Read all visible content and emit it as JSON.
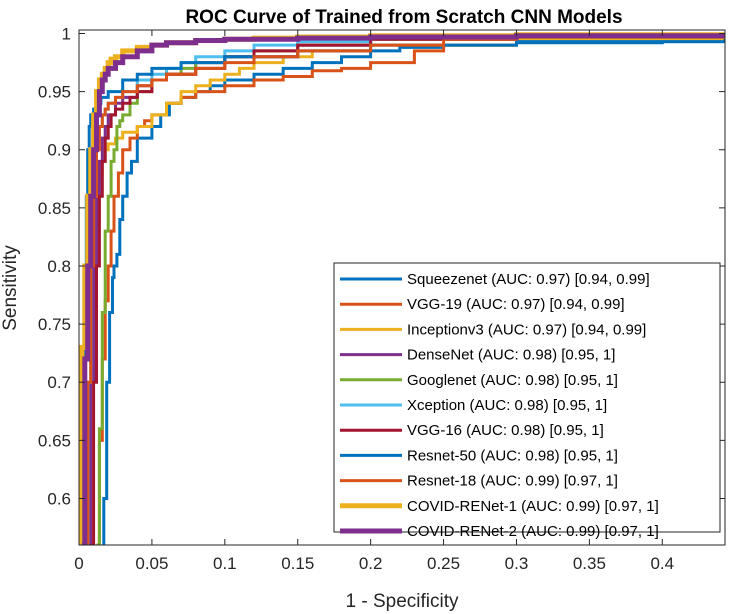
{
  "chart_data": {
    "type": "line",
    "title": "ROC Curve of Trained from Scratch CNN Models",
    "xlabel": "1 - Specificity",
    "ylabel": "Sensitivity",
    "xlim": [
      0,
      0.443
    ],
    "ylim": [
      0.56,
      1.003
    ],
    "xticks": [
      0,
      0.05,
      0.1,
      0.15,
      0.2,
      0.25,
      0.3,
      0.35,
      0.4
    ],
    "xtick_labels": [
      "0",
      "0.05",
      "0.1",
      "0.15",
      "0.2",
      "0.25",
      "0.3",
      "0.35",
      "0.4"
    ],
    "yticks": [
      0.6,
      0.65,
      0.7,
      0.75,
      0.8,
      0.85,
      0.9,
      0.95,
      1
    ],
    "ytick_labels": [
      "0.6",
      "0.65",
      "0.7",
      "0.75",
      "0.8",
      "0.85",
      "0.9",
      "0.95",
      "1"
    ],
    "grid": false,
    "legend_position": "bottom-right",
    "series": [
      {
        "name": "Squeezenet (AUC: 0.97) [0.94, 0.99]",
        "color": "#0072BD",
        "width": 3,
        "x": [
          0.016,
          0.017,
          0.019,
          0.021,
          0.023,
          0.024,
          0.026,
          0.028,
          0.03,
          0.033,
          0.036,
          0.04,
          0.045,
          0.05,
          0.056,
          0.062,
          0.07,
          0.08,
          0.09,
          0.1,
          0.12,
          0.14,
          0.16,
          0.18,
          0.2,
          0.22,
          0.25,
          0.3,
          0.4,
          0.443
        ],
        "y": [
          0.56,
          0.6,
          0.7,
          0.76,
          0.79,
          0.8,
          0.81,
          0.84,
          0.86,
          0.88,
          0.89,
          0.91,
          0.91,
          0.92,
          0.93,
          0.94,
          0.945,
          0.95,
          0.955,
          0.96,
          0.965,
          0.97,
          0.975,
          0.98,
          0.985,
          0.988,
          0.99,
          0.992,
          0.993,
          0.993
        ]
      },
      {
        "name": "VGG-19 (AUC: 0.97) [0.94, 0.99]",
        "color": "#D95319",
        "width": 3,
        "x": [
          0.012,
          0.014,
          0.016,
          0.018,
          0.02,
          0.022,
          0.024,
          0.027,
          0.03,
          0.035,
          0.04,
          0.045,
          0.05,
          0.06,
          0.07,
          0.08,
          0.1,
          0.12,
          0.14,
          0.16,
          0.18,
          0.2,
          0.23,
          0.25,
          0.3,
          0.4,
          0.443
        ],
        "y": [
          0.56,
          0.65,
          0.72,
          0.77,
          0.8,
          0.83,
          0.86,
          0.88,
          0.9,
          0.91,
          0.92,
          0.925,
          0.93,
          0.94,
          0.945,
          0.95,
          0.955,
          0.96,
          0.963,
          0.968,
          0.97,
          0.975,
          0.985,
          0.99,
          0.995,
          0.997,
          0.997
        ]
      },
      {
        "name": "Inceptionv3 (AUC: 0.97) [0.94, 0.99]",
        "color": "#EDB120",
        "width": 3,
        "x": [
          0.0,
          0.002,
          0.004,
          0.006,
          0.008,
          0.01,
          0.012,
          0.014,
          0.016,
          0.018,
          0.02,
          0.025,
          0.03,
          0.04,
          0.05,
          0.06,
          0.07,
          0.08,
          0.09,
          0.1,
          0.11,
          0.12,
          0.14,
          0.16,
          0.2,
          0.3,
          0.443
        ],
        "y": [
          0.56,
          0.7,
          0.76,
          0.8,
          0.84,
          0.86,
          0.87,
          0.88,
          0.89,
          0.9,
          0.905,
          0.91,
          0.915,
          0.92,
          0.93,
          0.94,
          0.95,
          0.955,
          0.96,
          0.965,
          0.97,
          0.975,
          0.98,
          0.985,
          0.99,
          0.995,
          0.998
        ]
      },
      {
        "name": "DenseNet (AUC: 0.98) [0.95, 1]",
        "color": "#7E2F8E",
        "width": 3,
        "x": [
          0.006,
          0.008,
          0.01,
          0.012,
          0.014,
          0.016,
          0.018,
          0.02,
          0.025,
          0.03,
          0.04,
          0.05,
          0.06,
          0.08,
          0.1,
          0.15,
          0.2,
          0.3,
          0.443
        ],
        "y": [
          0.56,
          0.7,
          0.8,
          0.86,
          0.89,
          0.91,
          0.92,
          0.93,
          0.94,
          0.945,
          0.955,
          0.96,
          0.965,
          0.975,
          0.98,
          0.99,
          0.995,
          0.997,
          0.998
        ]
      },
      {
        "name": "Googlenet (AUC: 0.98) [0.95, 1]",
        "color": "#77AC30",
        "width": 3,
        "x": [
          0.012,
          0.014,
          0.016,
          0.018,
          0.02,
          0.022,
          0.024,
          0.026,
          0.028,
          0.03,
          0.035,
          0.04,
          0.05,
          0.06,
          0.07,
          0.08,
          0.1,
          0.12,
          0.15,
          0.2,
          0.3,
          0.443
        ],
        "y": [
          0.56,
          0.66,
          0.76,
          0.83,
          0.86,
          0.89,
          0.9,
          0.92,
          0.925,
          0.93,
          0.94,
          0.95,
          0.96,
          0.965,
          0.97,
          0.975,
          0.98,
          0.985,
          0.99,
          0.995,
          0.997,
          0.998
        ]
      },
      {
        "name": "Xception (AUC: 0.98) [0.95, 1]",
        "color": "#4DBEEE",
        "width": 3,
        "x": [
          0.004,
          0.006,
          0.008,
          0.01,
          0.012,
          0.014,
          0.016,
          0.018,
          0.02,
          0.025,
          0.03,
          0.04,
          0.05,
          0.06,
          0.07,
          0.08,
          0.1,
          0.12,
          0.15,
          0.2,
          0.3,
          0.443
        ],
        "y": [
          0.56,
          0.7,
          0.8,
          0.86,
          0.9,
          0.92,
          0.93,
          0.935,
          0.94,
          0.945,
          0.95,
          0.96,
          0.965,
          0.97,
          0.975,
          0.98,
          0.985,
          0.99,
          0.993,
          0.996,
          0.997,
          0.998
        ]
      },
      {
        "name": "VGG-16 (AUC: 0.98) [0.95, 1]",
        "color": "#A2142F",
        "width": 3,
        "x": [
          0.008,
          0.01,
          0.012,
          0.014,
          0.016,
          0.018,
          0.02,
          0.022,
          0.025,
          0.03,
          0.035,
          0.04,
          0.05,
          0.06,
          0.08,
          0.1,
          0.12,
          0.15,
          0.2,
          0.3,
          0.443
        ],
        "y": [
          0.56,
          0.7,
          0.8,
          0.86,
          0.89,
          0.91,
          0.92,
          0.93,
          0.935,
          0.94,
          0.945,
          0.95,
          0.96,
          0.965,
          0.97,
          0.98,
          0.985,
          0.99,
          0.995,
          0.997,
          0.998
        ]
      },
      {
        "name": "Resnet-50 (AUC: 0.98) [0.95, 1]",
        "color": "#0072BD",
        "width": 3,
        "x": [
          0.002,
          0.003,
          0.004,
          0.005,
          0.006,
          0.007,
          0.008,
          0.01,
          0.012,
          0.015,
          0.02,
          0.03,
          0.04,
          0.05,
          0.07,
          0.1,
          0.15,
          0.2,
          0.3,
          0.443
        ],
        "y": [
          0.56,
          0.7,
          0.8,
          0.86,
          0.9,
          0.92,
          0.93,
          0.935,
          0.94,
          0.945,
          0.95,
          0.96,
          0.965,
          0.97,
          0.975,
          0.98,
          0.985,
          0.99,
          0.993,
          0.995
        ]
      },
      {
        "name": "Resnet-18 (AUC: 0.99) [0.97, 1]",
        "color": "#D95319",
        "width": 3,
        "x": [
          0.004,
          0.006,
          0.008,
          0.01,
          0.012,
          0.014,
          0.016,
          0.018,
          0.02,
          0.025,
          0.03,
          0.04,
          0.05,
          0.06,
          0.08,
          0.1,
          0.12,
          0.15,
          0.2,
          0.25,
          0.3,
          0.443
        ],
        "y": [
          0.56,
          0.7,
          0.8,
          0.86,
          0.9,
          0.92,
          0.93,
          0.935,
          0.94,
          0.945,
          0.95,
          0.955,
          0.96,
          0.965,
          0.97,
          0.975,
          0.98,
          0.985,
          0.99,
          0.995,
          0.998,
          0.998
        ]
      },
      {
        "name": "COVID-RENet-1 (AUC: 0.99) [0.97, 1]",
        "color": "#EDB120",
        "width": 5,
        "x": [
          0.0,
          0.002,
          0.004,
          0.006,
          0.008,
          0.01,
          0.012,
          0.014,
          0.016,
          0.018,
          0.02,
          0.022,
          0.025,
          0.03,
          0.04,
          0.05,
          0.06,
          0.08,
          0.1,
          0.12,
          0.15,
          0.2,
          0.3,
          0.443
        ],
        "y": [
          0.56,
          0.73,
          0.8,
          0.86,
          0.9,
          0.93,
          0.95,
          0.96,
          0.965,
          0.97,
          0.975,
          0.978,
          0.98,
          0.985,
          0.988,
          0.99,
          0.992,
          0.994,
          0.995,
          0.996,
          0.997,
          0.998,
          0.999,
          1.0
        ]
      },
      {
        "name": "COVID-RENet-2 (AUC: 0.99) [0.97, 1]",
        "color": "#7E2F8E",
        "width": 5,
        "x": [
          0.002,
          0.004,
          0.006,
          0.008,
          0.01,
          0.012,
          0.014,
          0.016,
          0.018,
          0.02,
          0.025,
          0.03,
          0.04,
          0.05,
          0.06,
          0.08,
          0.1,
          0.15,
          0.2,
          0.3,
          0.443
        ],
        "y": [
          0.56,
          0.72,
          0.8,
          0.86,
          0.9,
          0.93,
          0.95,
          0.96,
          0.965,
          0.97,
          0.975,
          0.98,
          0.985,
          0.99,
          0.992,
          0.994,
          0.995,
          0.996,
          0.997,
          0.998,
          0.999
        ]
      }
    ]
  }
}
